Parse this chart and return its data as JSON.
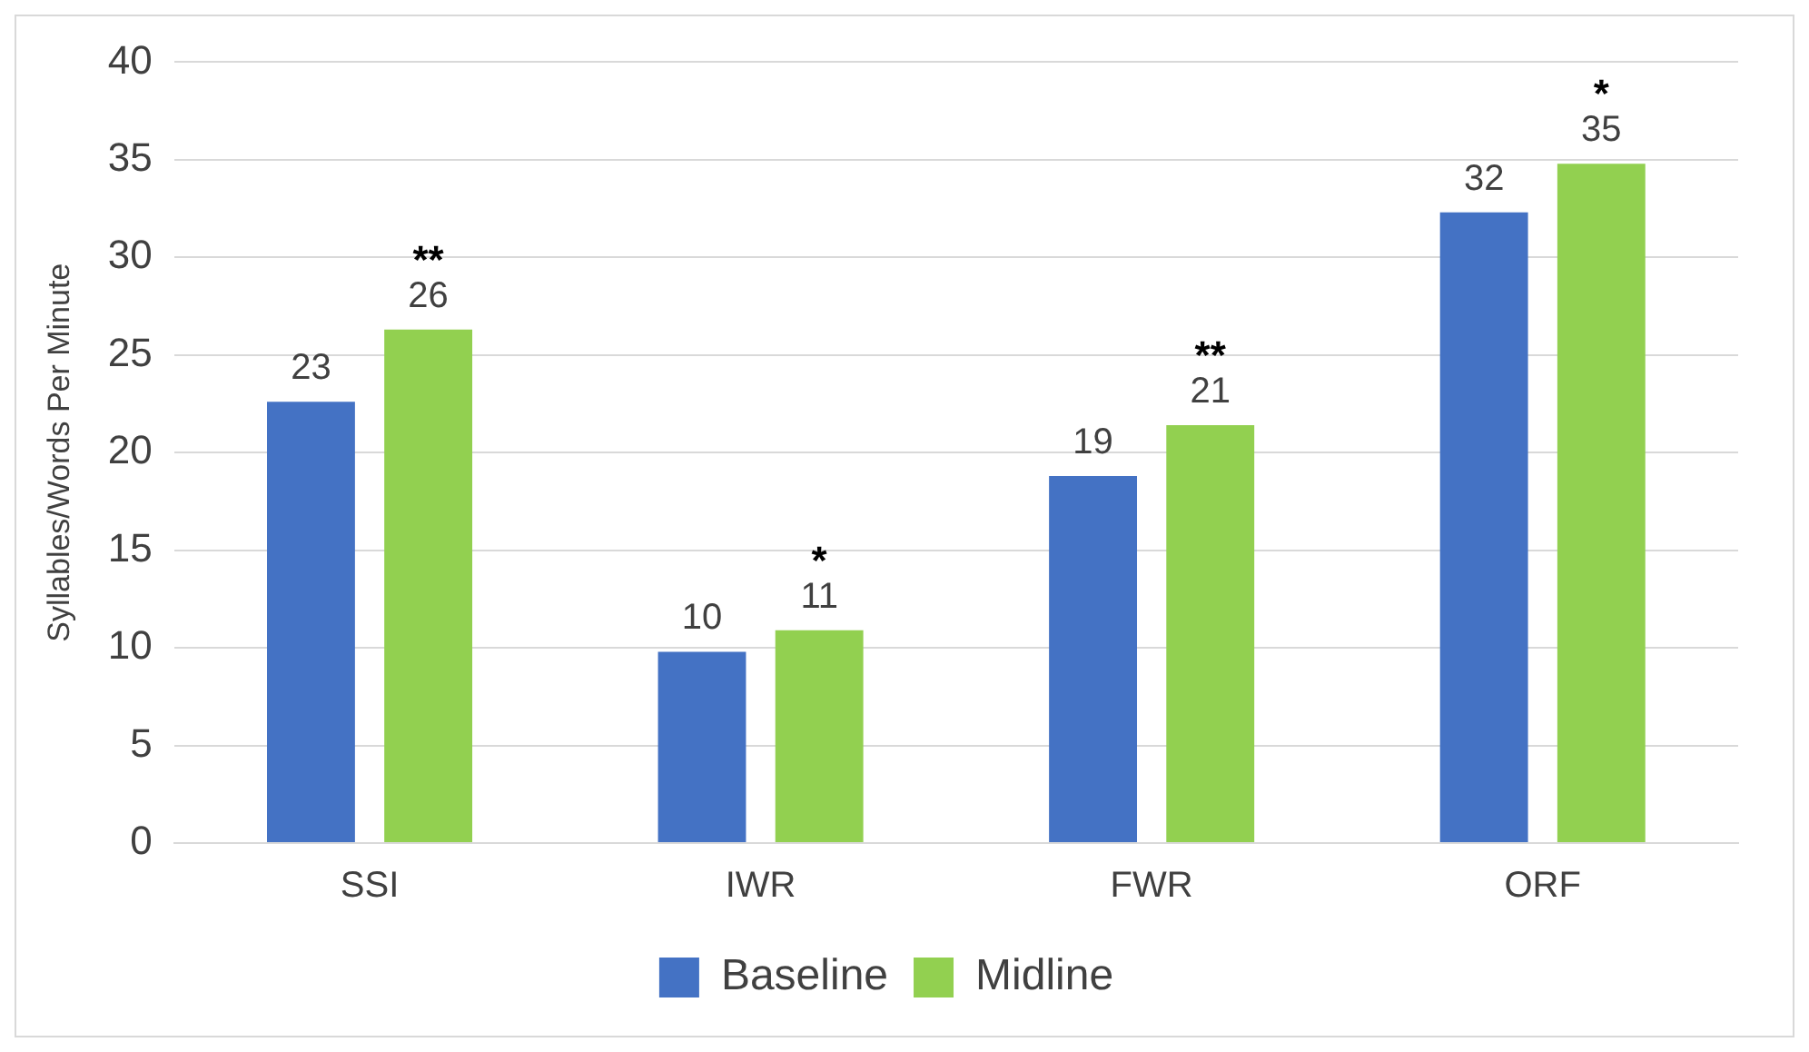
{
  "chart_data": {
    "type": "bar",
    "ylabel": "Syllables/Words Per Minute",
    "categories": [
      "SSI",
      "IWR",
      "FWR",
      "ORF"
    ],
    "series": [
      {
        "name": "Baseline",
        "color": "#4472c4",
        "values": [
          22.6,
          9.8,
          18.8,
          32.3
        ],
        "value_labels": [
          "23",
          "10",
          "19",
          "32"
        ]
      },
      {
        "name": "Midline",
        "color": "#92d050",
        "values": [
          26.3,
          10.9,
          21.4,
          34.8
        ],
        "value_labels": [
          "26",
          "11",
          "21",
          "35"
        ]
      }
    ],
    "annotations": [
      "**",
      "*",
      "**",
      "*"
    ],
    "ylim": [
      0,
      40
    ],
    "yticks": [
      0,
      5,
      10,
      15,
      20,
      25,
      30,
      35,
      40
    ],
    "grid": "y",
    "legend": "bottom"
  }
}
